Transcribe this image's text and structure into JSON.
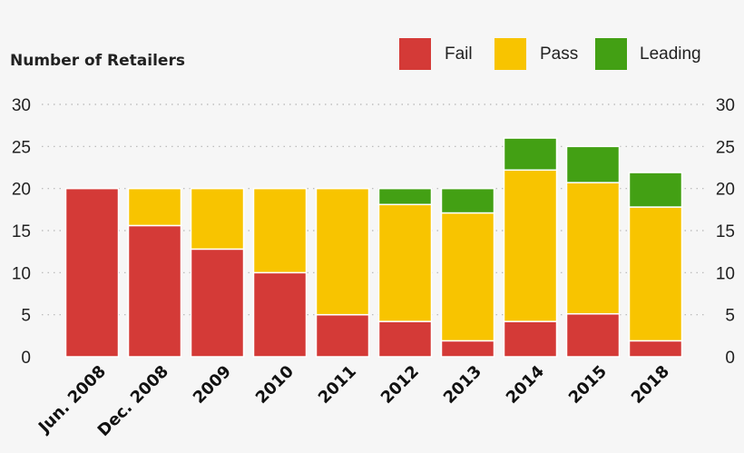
{
  "chart_data": {
    "type": "bar",
    "stacked": true,
    "ylabel": "Number of Retailers",
    "ylim": [
      0,
      30
    ],
    "yticks": [
      0,
      5,
      10,
      15,
      20,
      25,
      30
    ],
    "grid": true,
    "legend_position": "top-right",
    "categories": [
      "Jun. 2008",
      "Dec. 2008",
      "2009",
      "2010",
      "2011",
      "2012",
      "2013",
      "2014",
      "2015",
      "2018"
    ],
    "series": [
      {
        "name": "Fail",
        "color": "#d43a37",
        "values": [
          20,
          15.6,
          12.8,
          10,
          5,
          4.2,
          1.9,
          4.2,
          5.1,
          1.9
        ]
      },
      {
        "name": "Pass",
        "color": "#f8c400",
        "values": [
          0,
          4.4,
          7.2,
          10,
          15,
          13.9,
          15.2,
          18,
          15.6,
          15.9
        ]
      },
      {
        "name": "Leading",
        "color": "#43a014",
        "values": [
          0,
          0,
          0,
          0,
          0,
          1.9,
          2.9,
          3.8,
          4.3,
          4.1
        ]
      }
    ]
  }
}
